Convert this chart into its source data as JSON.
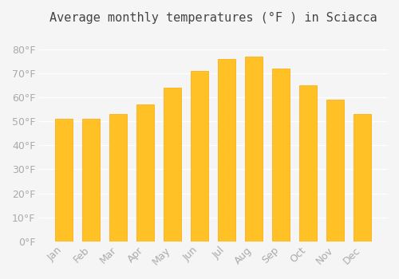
{
  "months": [
    "Jan",
    "Feb",
    "Mar",
    "Apr",
    "May",
    "Jun",
    "Jul",
    "Aug",
    "Sep",
    "Oct",
    "Nov",
    "Dec"
  ],
  "values": [
    51,
    51,
    53,
    57,
    64,
    71,
    76,
    77,
    72,
    65,
    59,
    53
  ],
  "bar_color_main": "#FFC125",
  "bar_color_edge": "#FFA500",
  "title": "Average monthly temperatures (°F ) in Sciacca",
  "ylim": [
    0,
    88
  ],
  "yticks": [
    0,
    10,
    20,
    30,
    40,
    50,
    60,
    70,
    80
  ],
  "ytick_labels": [
    "0°F",
    "10°F",
    "20°F",
    "30°F",
    "40°F",
    "50°F",
    "60°F",
    "70°F",
    "80°F"
  ],
  "background_color": "#f5f5f5",
  "grid_color": "#ffffff",
  "title_fontsize": 11,
  "tick_fontsize": 9,
  "tick_color": "#aaaaaa"
}
